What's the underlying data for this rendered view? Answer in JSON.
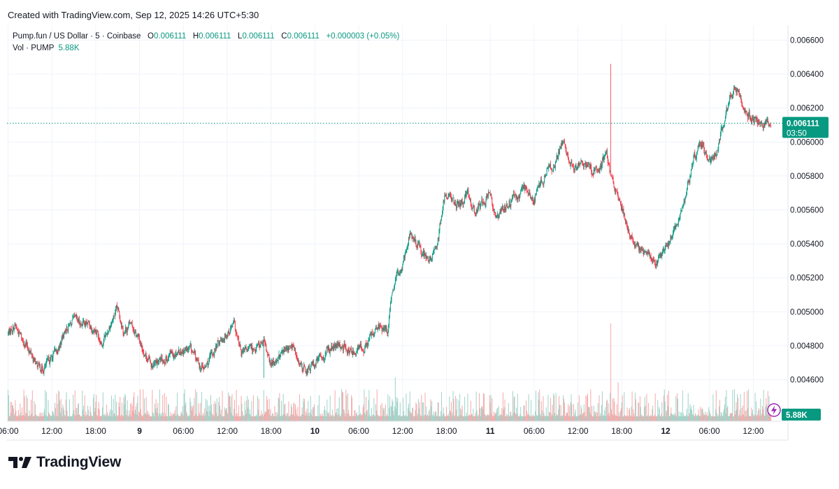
{
  "header": {
    "created_with": "Created with TradingView.com, Sep 12, 2025 14:26 UTC+5:30"
  },
  "legend": {
    "symbol": "Pump.fun / US Dollar · 5 · Coinbase",
    "open_label": "O",
    "open": "0.006111",
    "high_label": "H",
    "high": "0.006111",
    "low_label": "L",
    "low": "0.006111",
    "close_label": "C",
    "close": "0.006111",
    "change": "+0.000003 (+0.05%)",
    "volume_label": "Vol · PUMP",
    "volume": "5.88K"
  },
  "badges": {
    "last_price": "0.006111",
    "countdown": "03:50",
    "volume": "5.88K"
  },
  "brand": {
    "name": "TradingView"
  },
  "colors": {
    "up": "#089981",
    "down": "#f23645",
    "up_volume": "#9fd3c9",
    "down_volume": "#f7a9a9",
    "grid": "#f0f3fa",
    "text": "#131722"
  },
  "chart_data": {
    "type": "candlestick",
    "price_axis": {
      "ticks": [
        0.0066,
        0.0064,
        0.0062,
        0.006,
        0.0058,
        0.0056,
        0.0054,
        0.0052,
        0.005,
        0.0048,
        0.0046
      ],
      "tick_labels": [
        "0.006600",
        "0.006400",
        "0.006200",
        "0.006000",
        "0.005800",
        "0.005600",
        "0.005400",
        "0.005200",
        "0.005000",
        "0.004800",
        "0.004600"
      ],
      "range": [
        0.00442,
        0.00664
      ]
    },
    "time_axis": {
      "ticks": [
        "06:00",
        "12:00",
        "18:00",
        "9",
        "06:00",
        "12:00",
        "18:00",
        "10",
        "06:00",
        "12:00",
        "18:00",
        "11",
        "06:00",
        "12:00",
        "18:00",
        "12",
        "06:00",
        "12:00"
      ],
      "bold_ticks": [
        "9",
        "10",
        "11",
        "12"
      ],
      "start": "Sep 8 06:00",
      "end": "Sep 12 14:26",
      "interval": "5 min"
    },
    "price_path": [
      [
        "Sep 8 06:00",
        0.00487
      ],
      [
        "Sep 8 07:00",
        0.00492
      ],
      [
        "Sep 8 08:00",
        0.00484
      ],
      [
        "Sep 8 09:00",
        0.00478
      ],
      [
        "Sep 8 10:00",
        0.00468
      ],
      [
        "Sep 8 11:00",
        0.00467
      ],
      [
        "Sep 8 13:00",
        0.00478
      ],
      [
        "Sep 8 14:00",
        0.0049
      ],
      [
        "Sep 8 15:00",
        0.00494
      ],
      [
        "Sep 8 17:00",
        0.00493
      ],
      [
        "Sep 8 18:00",
        0.0049
      ],
      [
        "Sep 8 19:00",
        0.00482
      ],
      [
        "Sep 8 20:00",
        0.00492
      ],
      [
        "Sep 8 21:00",
        0.00501
      ],
      [
        "Sep 8 22:00",
        0.00489
      ],
      [
        "Sep 8 23:00",
        0.00493
      ],
      [
        "Sep 9 01:00",
        0.00474
      ],
      [
        "Sep 9 02:00",
        0.00468
      ],
      [
        "Sep 9 03:00",
        0.00471
      ],
      [
        "Sep 9 05:00",
        0.00477
      ],
      [
        "Sep 9 07:00",
        0.00478
      ],
      [
        "Sep 9 08:00",
        0.0047
      ],
      [
        "Sep 9 09:00",
        0.00466
      ],
      [
        "Sep 9 11:00",
        0.00483
      ],
      [
        "Sep 9 12:00",
        0.00488
      ],
      [
        "Sep 9 13:00",
        0.00492
      ],
      [
        "Sep 9 14:00",
        0.00475
      ],
      [
        "Sep 9 16:00",
        0.00479
      ],
      [
        "Sep 9 17:00",
        0.00482
      ],
      [
        "Sep 9 18:00",
        0.00468
      ],
      [
        "Sep 9 19:00",
        0.00474
      ],
      [
        "Sep 9 21:00",
        0.0048
      ],
      [
        "Sep 9 22:00",
        0.00468
      ],
      [
        "Sep 9 23:00",
        0.00465
      ],
      [
        "Sep 10 01:00",
        0.00474
      ],
      [
        "Sep 10 02:00",
        0.00478
      ],
      [
        "Sep 10 04:00",
        0.0048
      ],
      [
        "Sep 10 05:00",
        0.00476
      ],
      [
        "Sep 10 07:00",
        0.0048
      ],
      [
        "Sep 10 08:00",
        0.00487
      ],
      [
        "Sep 10 09:00",
        0.00491
      ],
      [
        "Sep 10 10:00",
        0.00488
      ],
      [
        "Sep 10 10:30",
        0.00505
      ],
      [
        "Sep 10 11:00",
        0.00516
      ],
      [
        "Sep 10 12:00",
        0.00527
      ],
      [
        "Sep 10 13:00",
        0.00546
      ],
      [
        "Sep 10 14:00",
        0.0054
      ],
      [
        "Sep 10 15:00",
        0.00534
      ],
      [
        "Sep 10 16:00",
        0.00529
      ],
      [
        "Sep 10 17:00",
        0.00545
      ],
      [
        "Sep 10 18:00",
        0.00571
      ],
      [
        "Sep 10 19:00",
        0.00566
      ],
      [
        "Sep 10 20:00",
        0.00562
      ],
      [
        "Sep 10 21:00",
        0.00569
      ],
      [
        "Sep 10 22:00",
        0.00558
      ],
      [
        "Sep 11 00:00",
        0.0057
      ],
      [
        "Sep 11 01:00",
        0.00556
      ],
      [
        "Sep 11 02:00",
        0.00562
      ],
      [
        "Sep 11 04:00",
        0.00568
      ],
      [
        "Sep 11 05:00",
        0.00574
      ],
      [
        "Sep 11 06:00",
        0.00565
      ],
      [
        "Sep 11 07:00",
        0.00576
      ],
      [
        "Sep 11 08:00",
        0.00584
      ],
      [
        "Sep 11 09:00",
        0.00587
      ],
      [
        "Sep 11 10:00",
        0.006
      ],
      [
        "Sep 11 11:00",
        0.00588
      ],
      [
        "Sep 11 12:00",
        0.00584
      ],
      [
        "Sep 11 13:00",
        0.00588
      ],
      [
        "Sep 11 14:00",
        0.00584
      ],
      [
        "Sep 11 15:00",
        0.00583
      ],
      [
        "Sep 11 16:00",
        0.00594
      ],
      [
        "Sep 11 16:30",
        0.00582
      ],
      [
        "Sep 11 17:00",
        0.00575
      ],
      [
        "Sep 11 18:00",
        0.00562
      ],
      [
        "Sep 11 19:00",
        0.00549
      ],
      [
        "Sep 11 20:00",
        0.00538
      ],
      [
        "Sep 11 21:00",
        0.00535
      ],
      [
        "Sep 11 22:00",
        0.00532
      ],
      [
        "Sep 11 23:00",
        0.00531
      ],
      [
        "Sep 12 00:00",
        0.00538
      ],
      [
        "Sep 12 01:00",
        0.00545
      ],
      [
        "Sep 12 02:00",
        0.00554
      ],
      [
        "Sep 12 03:00",
        0.00572
      ],
      [
        "Sep 12 04:00",
        0.00592
      ],
      [
        "Sep 12 05:00",
        0.00598
      ],
      [
        "Sep 12 06:00",
        0.00587
      ],
      [
        "Sep 12 07:00",
        0.00594
      ],
      [
        "Sep 12 08:00",
        0.00612
      ],
      [
        "Sep 12 09:00",
        0.00625
      ],
      [
        "Sep 12 09:30",
        0.00633
      ],
      [
        "Sep 12 10:00",
        0.00628
      ],
      [
        "Sep 12 11:00",
        0.00618
      ],
      [
        "Sep 12 12:00",
        0.00614
      ],
      [
        "Sep 12 13:00",
        0.00611
      ],
      [
        "Sep 12 14:26",
        0.006111
      ]
    ],
    "spikes": [
      {
        "time": "Sep 11 16:30",
        "high": 0.00646
      },
      {
        "time": "Sep 9 17:00",
        "low": 0.00461
      },
      {
        "time": "Sep 8 21:00",
        "high": 0.00503
      }
    ],
    "last_price": 0.006111,
    "last_volume": "5.88K",
    "volume_spikes": [
      {
        "time": "Sep 11 16:30",
        "relative": 1.0
      },
      {
        "time": "Sep 10 11:00",
        "relative": 0.45
      },
      {
        "time": "Sep 11 17:30",
        "relative": 0.4
      },
      {
        "time": "Sep 9 17:00",
        "relative": 0.32
      }
    ]
  }
}
